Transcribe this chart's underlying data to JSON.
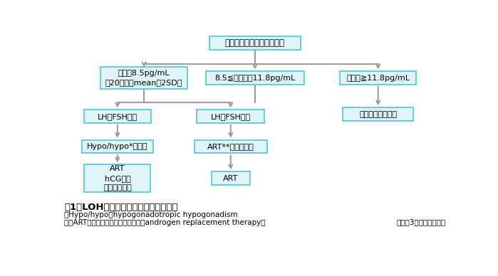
{
  "bg_color": "#ffffff",
  "box_border_color": "#5bc8d8",
  "box_fill_color": "#dff4f8",
  "arrow_color": "#999999",
  "text_color": "#000000",
  "title_top": "遊離型テストステロン測定",
  "box_low": "低値＜8.5pg/mL\n（20歳代のmean－2SD）",
  "box_mid": "8.5≦境界閾＜11.8pg/mL",
  "box_high": "正常値≧11.8pg/mL",
  "box_lhfsh_low": "LH・FSH低下",
  "box_hypo": "Hypo/hypo*の精査",
  "box_art_hcg": "ART\nhCG療法\n原疾患の治療",
  "box_lhfsh_high": "LH・FSH上昇",
  "box_art_kinki": "ART**禁忌例除外",
  "box_art": "ART",
  "box_symptoms": "症状に応じた治療",
  "caption_line1": "図1　LOH症候群の診断のアルゴリズム",
  "caption_line2": "＊Hypo/hypo：hypogonadotropic hypogonadism",
  "caption_line3": "＊＊ART：テストステロン補充療法（androgen replacement therapy）",
  "caption_right": "（文献3をもとに作成）"
}
